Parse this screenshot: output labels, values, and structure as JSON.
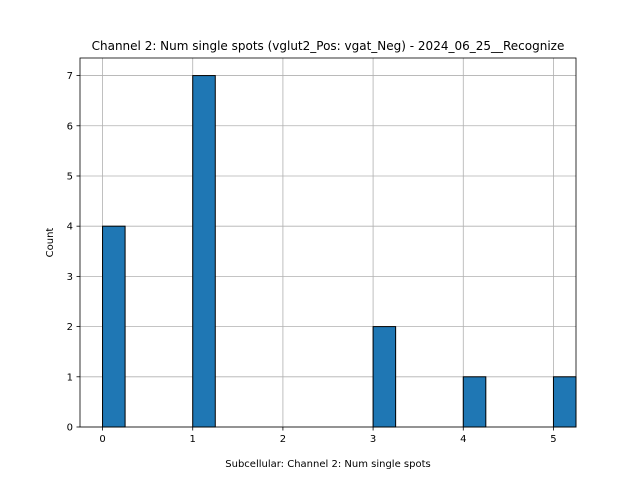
{
  "chart_data": {
    "type": "bar",
    "title": "Channel 2: Num single spots (vglut2_Pos: vgat_Neg) - 2024_06_25__Recognize",
    "xlabel": "Subcellular: Channel 2: Num single spots",
    "ylabel": "Count",
    "xlim": [
      -0.25,
      5.25
    ],
    "ylim": [
      0,
      7.35
    ],
    "bin_width": 0.25,
    "bars": [
      {
        "x": 0,
        "count": 4
      },
      {
        "x": 1,
        "count": 7
      },
      {
        "x": 3,
        "count": 2
      },
      {
        "x": 4,
        "count": 1
      },
      {
        "x": 5,
        "count": 1
      }
    ],
    "xticks": [
      "0",
      "1",
      "2",
      "3",
      "4",
      "5"
    ],
    "yticks": [
      "0",
      "1",
      "2",
      "3",
      "4",
      "5",
      "6",
      "7"
    ],
    "grid": true,
    "bar_color": "#1f77b4",
    "edge_color": "#000000"
  }
}
